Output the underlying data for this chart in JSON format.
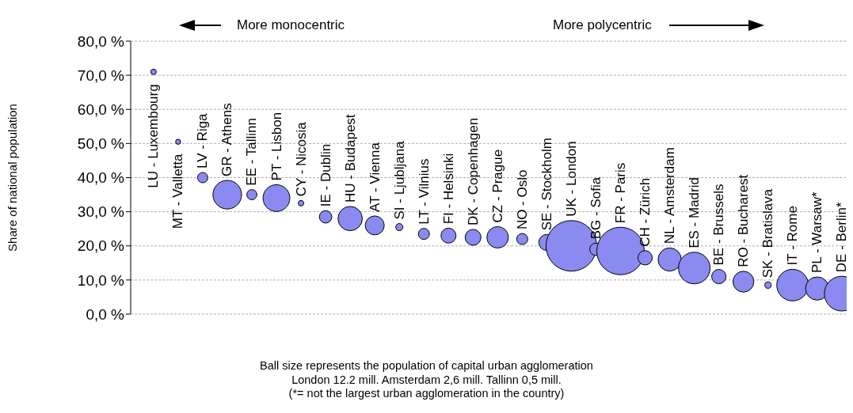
{
  "chart_data": {
    "type": "bubble",
    "ylabel": "Share of national population",
    "categories": [
      "LU - Luxembourg",
      "MT - Valletta",
      "LV - Riga",
      "GR - Athens",
      "EE - Tallinn",
      "PT - Lisbon",
      "CY - Nicosia",
      "IE - Dublin",
      "HU - Budapest",
      "AT - Vienna",
      "SI - Ljubljana",
      "LT - Vilnius",
      "FI - Helsinki",
      "DK - Copenhagen",
      "CZ - Prague",
      "NO - Oslo",
      "SE - Stockholm",
      "UK - London",
      "BG - Sofia",
      "FR - Paris",
      "CH - Zürich",
      "NL - Amsterdam",
      "ES - Madrid",
      "BE - Brussels",
      "RO - Bucharest",
      "SK - Bratislava",
      "IT - Rome",
      "PL - Warsaw*",
      "DE - Berlin*"
    ],
    "values": [
      71,
      50.5,
      40,
      35,
      35,
      34,
      32.5,
      28.5,
      28,
      26,
      25.5,
      23.5,
      23,
      22.5,
      22.5,
      22,
      21,
      20,
      19,
      18.5,
      16.5,
      16,
      13.5,
      11,
      9.5,
      8.5,
      8.5,
      7.5,
      6
    ],
    "sizes": [
      0.012,
      0.01,
      0.041,
      0.32,
      0.04,
      0.28,
      0.012,
      0.06,
      0.23,
      0.14,
      0.02,
      0.048,
      0.088,
      0.098,
      0.18,
      0.048,
      0.1,
      1,
      0.06,
      0.88,
      0.08,
      0.21,
      0.39,
      0.08,
      0.17,
      0.016,
      0.39,
      0.21,
      0.47
    ],
    "color": "#8a8af0",
    "ylim": [
      0,
      80
    ],
    "yticks": [
      {
        "value": 0,
        "label": "0,0 %"
      },
      {
        "value": 10,
        "label": "10,0 %"
      },
      {
        "value": 20,
        "label": "20,0 %"
      },
      {
        "value": 30,
        "label": "30,0 %"
      },
      {
        "value": 40,
        "label": "40,0 %"
      },
      {
        "value": 50,
        "label": "50,0 %"
      },
      {
        "value": 60,
        "label": "60,0 %"
      },
      {
        "value": 70,
        "label": "70,0 %"
      },
      {
        "value": 80,
        "label": "80,0 %"
      }
    ],
    "grid": "y",
    "tick_labels": "y",
    "annotations": [
      "More monocentric",
      "More polycentric",
      "Ball size represents the population of capital urban agglomeration",
      "London 12.2 mill. Amsterdam 2,6 mill. Tallinn 0,5 mill.",
      "(*= not the largest urban agglomeration in the country)"
    ]
  }
}
